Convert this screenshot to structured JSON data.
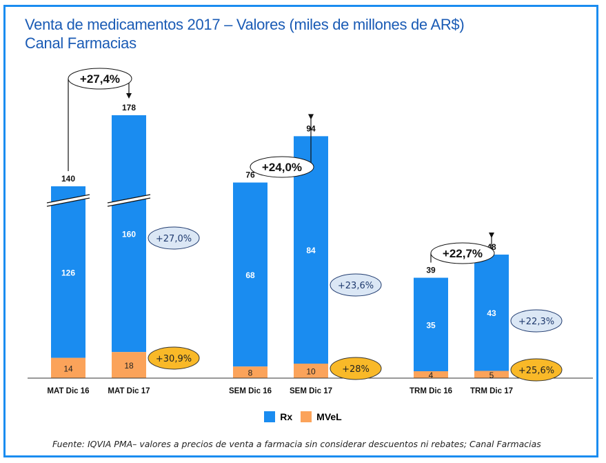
{
  "header": {
    "title_line1": "Venta de medicamentos 2017 – Valores (miles de millones de AR$)",
    "title_line2": "Canal Farmacias"
  },
  "colors": {
    "frame": "#1a8cf0",
    "title": "#1a5bb5",
    "rx": "#1a8cf0",
    "mvel": "#fba35a",
    "rx_bubble": "#dbe7f5",
    "mvel_bubble": "#f9b928"
  },
  "chart_data": {
    "type": "bar",
    "stacked": true,
    "title": "Venta de medicamentos 2017 – Valores (miles de millones de AR$) Canal Farmacias",
    "xlabel": "",
    "ylabel": "",
    "axis_break_on": [
      "MAT Dic 16",
      "MAT Dic 17"
    ],
    "categories": [
      "MAT Dic 16",
      "MAT Dic 17",
      "SEM  Dic 16",
      "SEM  Dic 17",
      "TRM Dic 16",
      "TRM Dic 17"
    ],
    "series": [
      {
        "name": "MVeL",
        "values": [
          14,
          18,
          8,
          10,
          4,
          5
        ]
      },
      {
        "name": "Rx",
        "values": [
          126,
          160,
          68,
          84,
          35,
          43
        ]
      }
    ],
    "totals": [
      140,
      178,
      76,
      94,
      39,
      48
    ],
    "groups": [
      {
        "name": "MAT",
        "total_growth": "+27,4%",
        "rx_growth": "+27,0%",
        "mvel_growth": "+30,9%"
      },
      {
        "name": "SEM",
        "total_growth": "+24,0%",
        "rx_growth": "+23,6%",
        "mvel_growth": "+28%"
      },
      {
        "name": "TRM",
        "total_growth": "+22,7%",
        "rx_growth": "+22,3%",
        "mvel_growth": "+25,6%"
      }
    ],
    "legend": [
      "Rx",
      "MVeL"
    ],
    "legend_position": "bottom"
  },
  "legend": {
    "rx_label": "Rx",
    "mvel_label": "MVeL"
  },
  "footer": {
    "source": "Fuente: IQVIA PMA– valores a precios de venta a farmacia sin considerar descuentos ni rebates; Canal Farmacias"
  }
}
